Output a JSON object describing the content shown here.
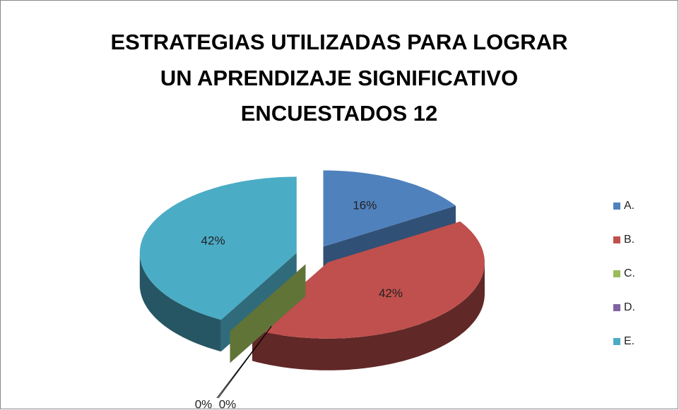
{
  "chart_data": {
    "type": "pie",
    "title": [
      "ESTRATEGIAS UTILIZADAS PARA LOGRAR",
      "UN APRENDIZAJE SIGNIFICATIVO",
      "ENCUESTADOS 12"
    ],
    "categories": [
      "A.",
      "B.",
      "C.",
      "D.",
      "E."
    ],
    "values": [
      16,
      42,
      0,
      0,
      42
    ],
    "value_labels": [
      "16%",
      "42%",
      "0%",
      "0%",
      "42%"
    ],
    "colors": [
      "#4f81bd",
      "#c0504d",
      "#9bbb59",
      "#8064a2",
      "#4bacc6"
    ],
    "legend": "right"
  }
}
